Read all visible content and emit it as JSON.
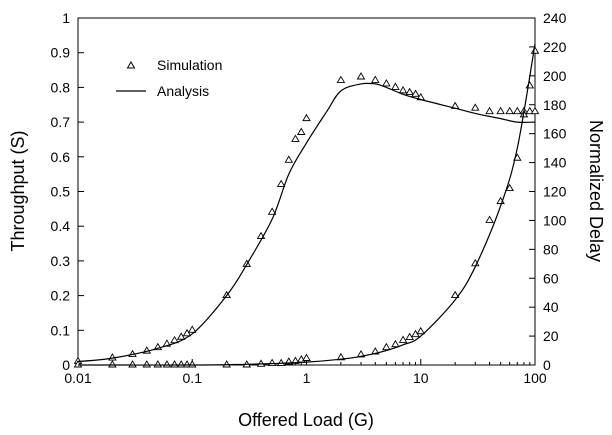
{
  "chart_data": {
    "type": "scatter",
    "xscale": "log",
    "xlim": [
      0.01,
      100
    ],
    "ylim": [
      0,
      1
    ],
    "y2lim": [
      0,
      240
    ],
    "xlabel": "Offered Load (G)",
    "ylabel": "Throughput (S)",
    "y2label": "Normalized Delay",
    "xticks": [
      "0.01",
      "0.1",
      "1",
      "10",
      "100"
    ],
    "yticks": [
      "0",
      "0.1",
      "0.2",
      "0.3",
      "0.4",
      "0.5",
      "0.6",
      "0.7",
      "0.8",
      "0.9",
      "1"
    ],
    "y2ticks": [
      "0",
      "20",
      "40",
      "60",
      "80",
      "100",
      "120",
      "140",
      "160",
      "180",
      "200",
      "220",
      "240"
    ],
    "legend": {
      "position": "top-left",
      "entries": [
        {
          "name": "Simulation",
          "marker": "triangle"
        },
        {
          "name": "Analysis",
          "marker": "line"
        }
      ]
    },
    "series": [
      {
        "kind": "simulation",
        "axis": "left",
        "points": [
          [
            0.01,
            0.01
          ],
          [
            0.02,
            0.02
          ],
          [
            0.03,
            0.03
          ],
          [
            0.04,
            0.04
          ],
          [
            0.05,
            0.05
          ],
          [
            0.06,
            0.06
          ],
          [
            0.07,
            0.07
          ],
          [
            0.08,
            0.08
          ],
          [
            0.09,
            0.09
          ],
          [
            0.1,
            0.1
          ],
          [
            0.2,
            0.2
          ],
          [
            0.3,
            0.29
          ],
          [
            0.4,
            0.37
          ],
          [
            0.5,
            0.44
          ],
          [
            0.6,
            0.52
          ],
          [
            0.7,
            0.59
          ],
          [
            0.8,
            0.65
          ],
          [
            0.9,
            0.67
          ],
          [
            1,
            0.71
          ],
          [
            2,
            0.82
          ],
          [
            3,
            0.83
          ],
          [
            4,
            0.82
          ],
          [
            5,
            0.81
          ],
          [
            6,
            0.8
          ],
          [
            7,
            0.79
          ],
          [
            8,
            0.785
          ],
          [
            9,
            0.78
          ],
          [
            10,
            0.77
          ],
          [
            20,
            0.745
          ],
          [
            30,
            0.74
          ],
          [
            40,
            0.73
          ],
          [
            50,
            0.73
          ],
          [
            60,
            0.73
          ],
          [
            70,
            0.73
          ],
          [
            80,
            0.73
          ],
          [
            90,
            0.73
          ],
          [
            100,
            0.73
          ]
        ]
      },
      {
        "kind": "analysis",
        "axis": "left",
        "points": [
          [
            0.01,
            0.01
          ],
          [
            0.02,
            0.02
          ],
          [
            0.05,
            0.048
          ],
          [
            0.1,
            0.09
          ],
          [
            0.2,
            0.2
          ],
          [
            0.3,
            0.29
          ],
          [
            0.5,
            0.42
          ],
          [
            0.7,
            0.55
          ],
          [
            1,
            0.64
          ],
          [
            1.5,
            0.73
          ],
          [
            2,
            0.79
          ],
          [
            3,
            0.81
          ],
          [
            4,
            0.81
          ],
          [
            5,
            0.8
          ],
          [
            7,
            0.78
          ],
          [
            10,
            0.765
          ],
          [
            20,
            0.74
          ],
          [
            30,
            0.725
          ],
          [
            50,
            0.71
          ],
          [
            70,
            0.7
          ],
          [
            100,
            0.7
          ]
        ]
      },
      {
        "kind": "simulation",
        "axis": "right",
        "points": [
          [
            0.01,
            0
          ],
          [
            0.02,
            0
          ],
          [
            0.03,
            0
          ],
          [
            0.04,
            0
          ],
          [
            0.05,
            0
          ],
          [
            0.06,
            0
          ],
          [
            0.07,
            0
          ],
          [
            0.08,
            0
          ],
          [
            0.09,
            0
          ],
          [
            0.1,
            0
          ],
          [
            0.2,
            0
          ],
          [
            0.3,
            0
          ],
          [
            0.4,
            0.5
          ],
          [
            0.5,
            1
          ],
          [
            0.6,
            1
          ],
          [
            0.7,
            2
          ],
          [
            0.8,
            2.5
          ],
          [
            0.9,
            3.5
          ],
          [
            1,
            4.5
          ],
          [
            2,
            5
          ],
          [
            3,
            7
          ],
          [
            4,
            9
          ],
          [
            5,
            12
          ],
          [
            6,
            14
          ],
          [
            7,
            17
          ],
          [
            8,
            19
          ],
          [
            9,
            21
          ],
          [
            10,
            23
          ],
          [
            20,
            48
          ],
          [
            30,
            70
          ],
          [
            40,
            100
          ],
          [
            50,
            113
          ],
          [
            60,
            122
          ],
          [
            70,
            143
          ],
          [
            80,
            173
          ],
          [
            90,
            193
          ],
          [
            100,
            217
          ]
        ]
      },
      {
        "kind": "analysis",
        "axis": "right",
        "points": [
          [
            0.01,
            0
          ],
          [
            0.1,
            0
          ],
          [
            0.3,
            0.5
          ],
          [
            0.5,
            1
          ],
          [
            1,
            2
          ],
          [
            2,
            4
          ],
          [
            3,
            6
          ],
          [
            5,
            10
          ],
          [
            7,
            14
          ],
          [
            10,
            20
          ],
          [
            20,
            45
          ],
          [
            30,
            68
          ],
          [
            50,
            110
          ],
          [
            70,
            150
          ],
          [
            100,
            222
          ]
        ]
      }
    ]
  }
}
